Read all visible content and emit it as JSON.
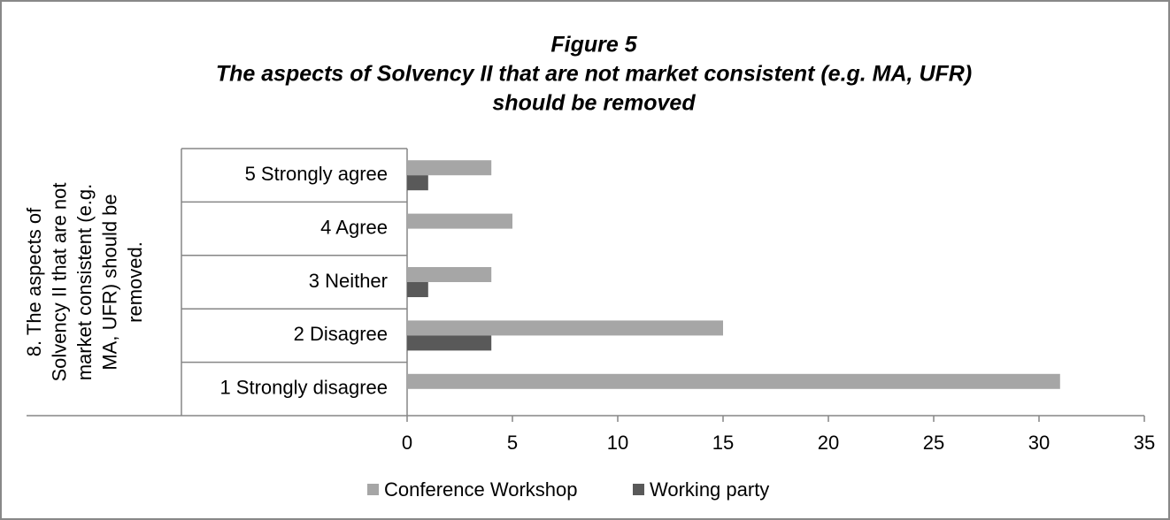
{
  "chart_data": {
    "type": "bar",
    "orientation": "horizontal",
    "title": [
      "Figure 5",
      "The aspects of Solvency II that are not market consistent (e.g. MA, UFR)",
      "should be removed"
    ],
    "ylabel": [
      "8. The aspects of",
      "Solvency II that are not",
      "market consistent (e.g.",
      "MA, UFR) should be",
      "removed."
    ],
    "categories": [
      "5 Strongly agree",
      "4 Agree",
      "3 Neither",
      "2 Disagree",
      "1 Strongly disagree"
    ],
    "series": [
      {
        "name": "Conference Workshop",
        "color": "#a6a6a6",
        "values": [
          4,
          5,
          4,
          15,
          31
        ]
      },
      {
        "name": "Working party",
        "color": "#595959",
        "values": [
          1,
          0,
          1,
          4,
          0
        ]
      }
    ],
    "xlim": [
      0,
      35
    ],
    "xticks": [
      0,
      5,
      10,
      15,
      20,
      25,
      30,
      35
    ],
    "grid": false,
    "legend": "bottom"
  }
}
